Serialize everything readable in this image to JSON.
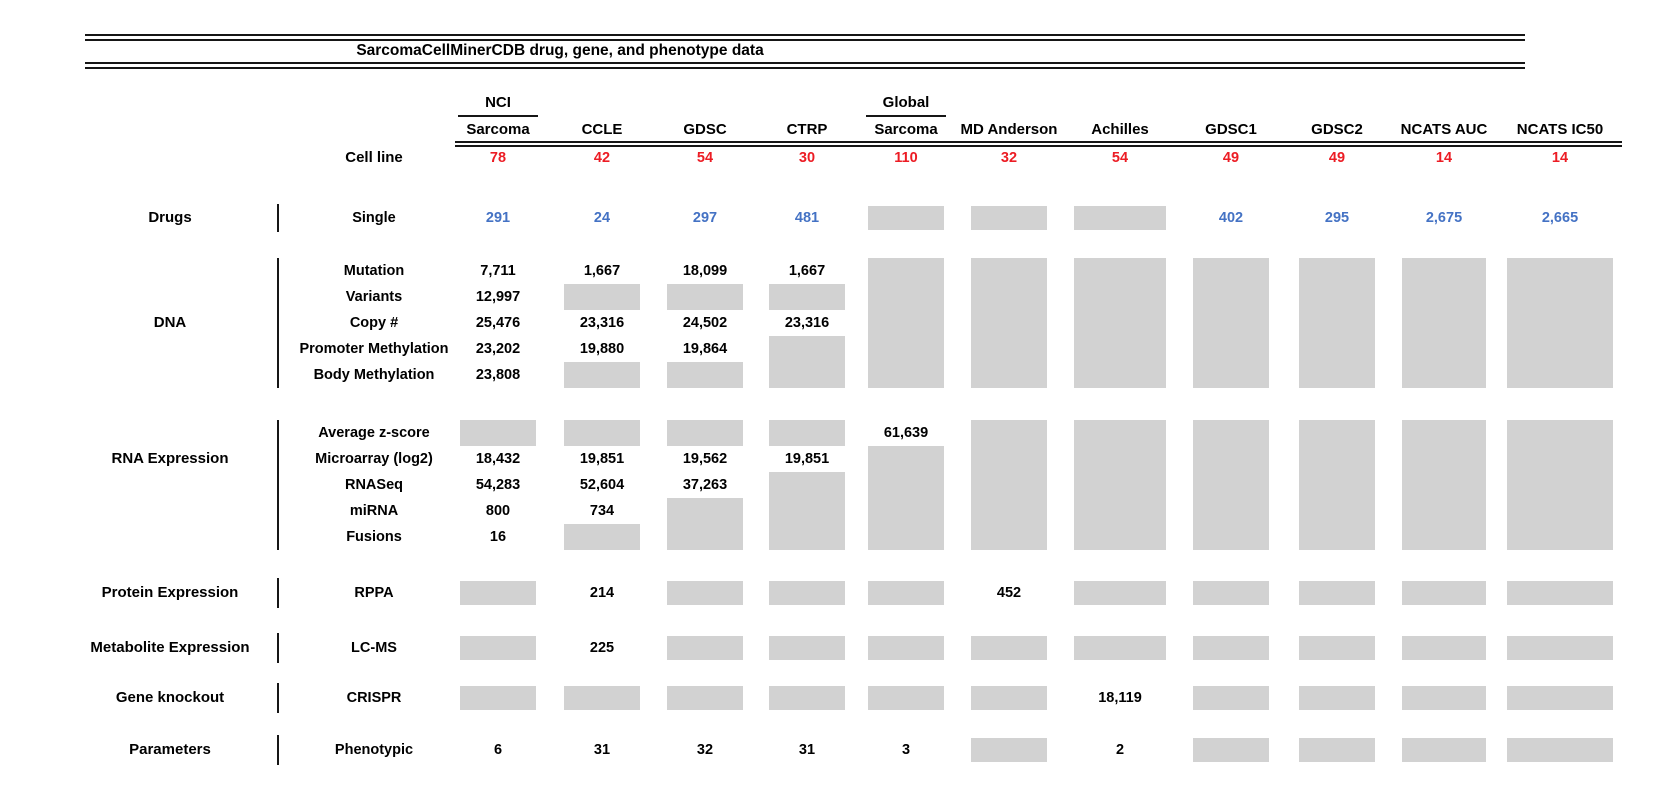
{
  "chart_data": {
    "type": "table",
    "title": "SarcomaCellMinerCDB drug, gene, and phenotype data",
    "cell_line_label": "Cell line",
    "columns": [
      {
        "id": "nci-sarcoma",
        "group": "NCI",
        "label": "Sarcoma",
        "cell_line_count": "78"
      },
      {
        "id": "ccle",
        "label": "CCLE",
        "cell_line_count": "42"
      },
      {
        "id": "gdsc",
        "label": "GDSC",
        "cell_line_count": "54"
      },
      {
        "id": "ctrp",
        "label": "CTRP",
        "cell_line_count": "30"
      },
      {
        "id": "global-sarcoma",
        "group": "Global",
        "label": "Sarcoma",
        "cell_line_count": "110"
      },
      {
        "id": "md-anderson",
        "label": "MD Anderson",
        "cell_line_count": "32"
      },
      {
        "id": "achilles",
        "label": "Achilles",
        "cell_line_count": "54"
      },
      {
        "id": "gdsc1",
        "label": "GDSC1",
        "cell_line_count": "49"
      },
      {
        "id": "gdsc2",
        "label": "GDSC2",
        "cell_line_count": "49"
      },
      {
        "id": "ncats-auc",
        "label": "NCATS AUC",
        "cell_line_count": "14"
      },
      {
        "id": "ncats-ic50",
        "label": "NCATS IC50",
        "cell_line_count": "14"
      }
    ],
    "sections": [
      {
        "category": "Drugs",
        "rows": [
          {
            "label": "Single",
            "value_color": "blue",
            "values": [
              "291",
              "24",
              "297",
              "481",
              "",
              "",
              "",
              "402",
              "295",
              "2,675",
              "2,665"
            ]
          }
        ]
      },
      {
        "category": "DNA",
        "rows": [
          {
            "label": "Mutation",
            "values": [
              "7,711",
              "1,667",
              "18,099",
              "1,667",
              "",
              "",
              "",
              "",
              "",
              "",
              ""
            ]
          },
          {
            "label": "Variants",
            "values": [
              "12,997",
              "",
              "",
              "",
              "",
              "",
              "",
              "",
              "",
              "",
              ""
            ]
          },
          {
            "label": "Copy #",
            "values": [
              "25,476",
              "23,316",
              "24,502",
              "23,316",
              "",
              "",
              "",
              "",
              "",
              "",
              ""
            ]
          },
          {
            "label": "Promoter Methylation",
            "values": [
              "23,202",
              "19,880",
              "19,864",
              "",
              "",
              "",
              "",
              "",
              "",
              "",
              ""
            ]
          },
          {
            "label": "Body Methylation",
            "values": [
              "23,808",
              "",
              "",
              "",
              "",
              "",
              "",
              "",
              "",
              "",
              ""
            ]
          }
        ]
      },
      {
        "category": "RNA Expression",
        "rows": [
          {
            "label": "Average z-score",
            "values": [
              "",
              "",
              "",
              "",
              "61,639",
              "",
              "",
              "",
              "",
              "",
              ""
            ]
          },
          {
            "label": "Microarray (log2)",
            "values": [
              "18,432",
              "19,851",
              "19,562",
              "19,851",
              "",
              "",
              "",
              "",
              "",
              "",
              ""
            ]
          },
          {
            "label": "RNASeq",
            "values": [
              "54,283",
              "52,604",
              "37,263",
              "",
              "",
              "",
              "",
              "",
              "",
              "",
              ""
            ]
          },
          {
            "label": "miRNA",
            "values": [
              "800",
              "734",
              "",
              "",
              "",
              "",
              "",
              "",
              "",
              "",
              ""
            ]
          },
          {
            "label": "Fusions",
            "values": [
              "16",
              "",
              "",
              "",
              "",
              "",
              "",
              "",
              "",
              "",
              ""
            ]
          }
        ]
      },
      {
        "category": "Protein Expression",
        "rows": [
          {
            "label": "RPPA",
            "values": [
              "",
              "214",
              "",
              "",
              "",
              "452",
              "",
              "",
              "",
              "",
              ""
            ]
          }
        ]
      },
      {
        "category": "Metabolite Expression",
        "rows": [
          {
            "label": "LC-MS",
            "values": [
              "",
              "225",
              "",
              "",
              "",
              "",
              "",
              "",
              "",
              "",
              ""
            ]
          }
        ]
      },
      {
        "category": "Gene knockout",
        "rows": [
          {
            "label": "CRISPR",
            "values": [
              "",
              "",
              "",
              "",
              "",
              "",
              "18,119",
              "",
              "",
              "",
              ""
            ]
          }
        ]
      },
      {
        "category": "Parameters",
        "rows": [
          {
            "label": "Phenotypic",
            "values": [
              "6",
              "31",
              "32",
              "31",
              "3",
              "",
              "2",
              "",
              "",
              "",
              ""
            ]
          }
        ]
      }
    ],
    "colors": {
      "cell_line_count_red": "#ec1c24",
      "drug_count_blue": "#4472c4",
      "no_data_gray": "#d2d2d2",
      "text_black": "#000000"
    }
  }
}
